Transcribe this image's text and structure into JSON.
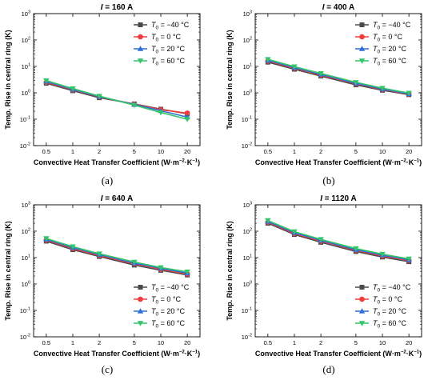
{
  "chart_data": [
    {
      "type": "line",
      "panel": "(a)",
      "title": "I = 160 A",
      "title_var": "I",
      "title_rest": " = 160 A",
      "xlabel": "Convective Heat Transfer Coefficient (W·m⁻²·K⁻¹)",
      "ylabel": "Temp. Rise in central ring (K)",
      "yscale": "log",
      "ylim": [
        0.01,
        1000
      ],
      "x": [
        0.5,
        1,
        2,
        5,
        10,
        20
      ],
      "xticklabels": [
        "0.5",
        "1",
        "2",
        "5",
        "10",
        "20"
      ],
      "legend_position": "top-right",
      "series": [
        {
          "name": "T0 = −40 °C",
          "color": "#4a4a4a",
          "marker": "square",
          "values": [
            2.3,
            1.2,
            0.65,
            0.38,
            0.24,
            0.16
          ]
        },
        {
          "name": "T0 = 0 °C",
          "color": "#f03c3c",
          "marker": "circle",
          "values": [
            2.5,
            1.3,
            0.7,
            0.37,
            0.23,
            0.17
          ]
        },
        {
          "name": "T0 = 20 °C",
          "color": "#2f6fd6",
          "marker": "triangle-up",
          "values": [
            2.7,
            1.35,
            0.72,
            0.36,
            0.21,
            0.12
          ]
        },
        {
          "name": "T0 = 60 °C",
          "color": "#34c46a",
          "marker": "triangle-down",
          "values": [
            2.9,
            1.45,
            0.75,
            0.34,
            0.18,
            0.1
          ]
        }
      ]
    },
    {
      "type": "line",
      "panel": "(b)",
      "title": "I = 400 A",
      "title_var": "I",
      "title_rest": " = 400 A",
      "xlabel": "Convective Heat Transfer Coefficient (W·m⁻²·K⁻¹)",
      "ylabel": "Temp. Rise in central ring (K)",
      "yscale": "log",
      "ylim": [
        0.01,
        1000
      ],
      "x": [
        0.5,
        1,
        2,
        5,
        10,
        20
      ],
      "xticklabels": [
        "0.5",
        "1",
        "2",
        "5",
        "10",
        "20"
      ],
      "legend_position": "top-right",
      "series": [
        {
          "name": "T0 = −40 °C",
          "color": "#4a4a4a",
          "marker": "square",
          "values": [
            14.5,
            7.8,
            4.3,
            2.0,
            1.25,
            0.85
          ]
        },
        {
          "name": "T0 = 0 °C",
          "color": "#f03c3c",
          "marker": "circle",
          "values": [
            16,
            8.5,
            4.7,
            2.2,
            1.35,
            0.9
          ]
        },
        {
          "name": "T0 = 20 °C",
          "color": "#2f6fd6",
          "marker": "triangle-up",
          "values": [
            17,
            9.0,
            5.0,
            2.3,
            1.4,
            0.92
          ]
        },
        {
          "name": "T0 = 60 °C",
          "color": "#34c46a",
          "marker": "triangle-down",
          "values": [
            18.5,
            9.8,
            5.4,
            2.5,
            1.5,
            0.98
          ]
        }
      ]
    },
    {
      "type": "line",
      "panel": "(c)",
      "title": "I = 640 A",
      "title_var": "I",
      "title_rest": " = 640 A",
      "xlabel": "Convective Heat Transfer Coefficient (W·m⁻²·K⁻¹)",
      "ylabel": "Temp. Rise in central ring (K)",
      "yscale": "log",
      "ylim": [
        0.01,
        1000
      ],
      "x": [
        0.5,
        1,
        2,
        5,
        10,
        20
      ],
      "xticklabels": [
        "0.5",
        "1",
        "2",
        "5",
        "10",
        "20"
      ],
      "legend_position": "bottom-right",
      "series": [
        {
          "name": "T0 = −40 °C",
          "color": "#4a4a4a",
          "marker": "square",
          "values": [
            42,
            20,
            11,
            5.2,
            3.3,
            2.2
          ]
        },
        {
          "name": "T0 = 0 °C",
          "color": "#f03c3c",
          "marker": "circle",
          "values": [
            46,
            22,
            12,
            5.8,
            3.6,
            2.4
          ]
        },
        {
          "name": "T0 = 20 °C",
          "color": "#2f6fd6",
          "marker": "triangle-up",
          "values": [
            49,
            24,
            13,
            6.2,
            3.9,
            2.6
          ]
        },
        {
          "name": "T0 = 60 °C",
          "color": "#34c46a",
          "marker": "triangle-down",
          "values": [
            53,
            26,
            14,
            6.8,
            4.2,
            2.9
          ]
        }
      ]
    },
    {
      "type": "line",
      "panel": "(d)",
      "title": "I = 1120 A",
      "title_var": "I",
      "title_rest": " = 1120 A",
      "xlabel": "Convective Heat Transfer Coefficient (W·m⁻²·K⁻¹)",
      "ylabel": "Temp. Rise in central ring (K)",
      "yscale": "log",
      "ylim": [
        0.01,
        1000
      ],
      "x": [
        0.5,
        1,
        2,
        5,
        10,
        20
      ],
      "xticklabels": [
        "0.5",
        "1",
        "2",
        "5",
        "10",
        "20"
      ],
      "legend_position": "bottom-right",
      "series": [
        {
          "name": "T0 = −40 °C",
          "color": "#4a4a4a",
          "marker": "square",
          "values": [
            200,
            75,
            38,
            17,
            10.5,
            7
          ]
        },
        {
          "name": "T0 = 0 °C",
          "color": "#f03c3c",
          "marker": "circle",
          "values": [
            220,
            82,
            42,
            19,
            11.5,
            7.8
          ]
        },
        {
          "name": "T0 = 20 °C",
          "color": "#2f6fd6",
          "marker": "triangle-up",
          "values": [
            235,
            88,
            45,
            20,
            12.5,
            8.3
          ]
        },
        {
          "name": "T0 = 60 °C",
          "color": "#34c46a",
          "marker": "triangle-down",
          "values": [
            255,
            96,
            49,
            22,
            13.5,
            9
          ]
        }
      ]
    }
  ],
  "legend": {
    "sym": "T",
    "sub": "0",
    "entries": [
      " = −40 °C",
      " = 0 °C",
      " = 20 °C",
      " = 60 °C"
    ]
  },
  "yticklabels": [
    {
      "base": "10",
      "exp": "-2"
    },
    {
      "base": "10",
      "exp": "-1"
    },
    {
      "base": "10",
      "exp": "0"
    },
    {
      "base": "10",
      "exp": "1"
    },
    {
      "base": "10",
      "exp": "2"
    },
    {
      "base": "10",
      "exp": "3"
    }
  ],
  "xlabel_parts": {
    "main": "Convective Heat Transfer Coefficient (W·m",
    "exp1": "−2",
    "mid": "·K",
    "exp2": "−1",
    "end": ")"
  }
}
